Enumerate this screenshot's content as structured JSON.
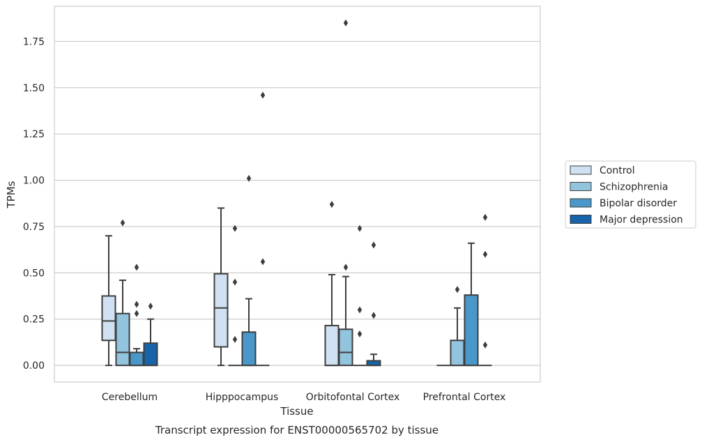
{
  "chart_data": {
    "type": "box",
    "title": "",
    "caption": "Transcript expression for ENST00000565702 by tissue",
    "xlabel": "Tissue",
    "ylabel": "TPMs",
    "ylim": [
      -0.09,
      1.94
    ],
    "yticks": [
      "0.00",
      "0.25",
      "0.50",
      "0.75",
      "1.00",
      "1.25",
      "1.50",
      "1.75"
    ],
    "grid": "horizontal",
    "legend_position": "right",
    "categories": [
      "Cerebellum",
      "Hipppocampus",
      "Orbitofontal Cortex",
      "Prefrontal Cortex"
    ],
    "series": [
      {
        "name": "Control",
        "color": "#cfe1f2",
        "boxes": [
          {
            "q1": 0.135,
            "median": 0.24,
            "q3": 0.375,
            "whisker_low": 0.0,
            "whisker_high": 0.7,
            "outliers": []
          },
          {
            "q1": 0.1,
            "median": 0.31,
            "q3": 0.495,
            "whisker_low": 0.0,
            "whisker_high": 0.85,
            "outliers": []
          },
          {
            "q1": 0.0,
            "median": 0.0,
            "q3": 0.215,
            "whisker_low": 0.0,
            "whisker_high": 0.49,
            "outliers": [
              0.87
            ]
          },
          {
            "q1": 0.0,
            "median": 0.0,
            "q3": 0.0,
            "whisker_low": 0.0,
            "whisker_high": 0.0,
            "outliers": []
          }
        ]
      },
      {
        "name": "Schizophrenia",
        "color": "#93c4de",
        "boxes": [
          {
            "q1": 0.0,
            "median": 0.07,
            "q3": 0.28,
            "whisker_low": 0.0,
            "whisker_high": 0.46,
            "outliers": [
              0.77
            ]
          },
          {
            "q1": 0.0,
            "median": 0.0,
            "q3": 0.0,
            "whisker_low": 0.0,
            "whisker_high": 0.0,
            "outliers": [
              0.14,
              0.45,
              0.74
            ]
          },
          {
            "q1": 0.0,
            "median": 0.07,
            "q3": 0.195,
            "whisker_low": 0.0,
            "whisker_high": 0.48,
            "outliers": [
              0.53,
              1.85
            ]
          },
          {
            "q1": 0.0,
            "median": 0.0,
            "q3": 0.135,
            "whisker_low": 0.0,
            "whisker_high": 0.31,
            "outliers": [
              0.41
            ]
          }
        ]
      },
      {
        "name": "Bipolar disorder",
        "color": "#4a98c9",
        "boxes": [
          {
            "q1": 0.0,
            "median": 0.0,
            "q3": 0.07,
            "whisker_low": 0.0,
            "whisker_high": 0.09,
            "outliers": [
              0.28,
              0.33,
              0.53
            ]
          },
          {
            "q1": 0.0,
            "median": 0.0,
            "q3": 0.18,
            "whisker_low": 0.0,
            "whisker_high": 0.36,
            "outliers": [
              1.01
            ]
          },
          {
            "q1": 0.0,
            "median": 0.0,
            "q3": 0.0,
            "whisker_low": 0.0,
            "whisker_high": 0.0,
            "outliers": [
              0.17,
              0.3,
              0.74
            ]
          },
          {
            "q1": 0.0,
            "median": 0.0,
            "q3": 0.38,
            "whisker_low": 0.0,
            "whisker_high": 0.66,
            "outliers": []
          }
        ]
      },
      {
        "name": "Major depression",
        "color": "#1764ab",
        "boxes": [
          {
            "q1": 0.0,
            "median": 0.0,
            "q3": 0.12,
            "whisker_low": 0.0,
            "whisker_high": 0.25,
            "outliers": [
              0.32
            ]
          },
          {
            "q1": 0.0,
            "median": 0.0,
            "q3": 0.0,
            "whisker_low": 0.0,
            "whisker_high": 0.0,
            "outliers": [
              0.56,
              1.46
            ]
          },
          {
            "q1": 0.0,
            "median": 0.0,
            "q3": 0.025,
            "whisker_low": 0.0,
            "whisker_high": 0.06,
            "outliers": [
              0.27,
              0.65
            ]
          },
          {
            "q1": 0.0,
            "median": 0.0,
            "q3": 0.0,
            "whisker_low": 0.0,
            "whisker_high": 0.0,
            "outliers": [
              0.11,
              0.6,
              0.8
            ]
          }
        ]
      }
    ]
  }
}
